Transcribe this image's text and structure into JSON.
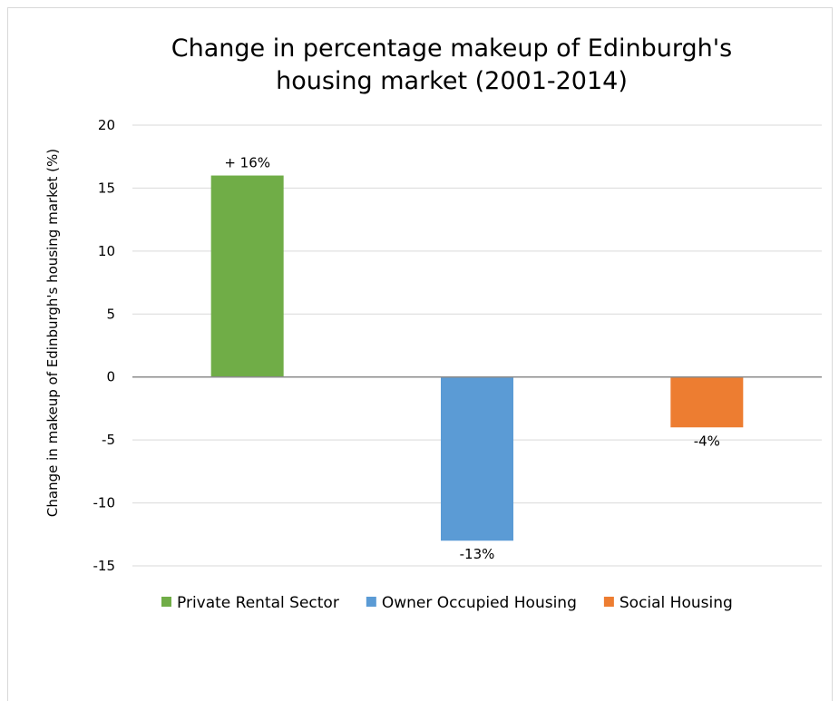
{
  "chart_data": {
    "type": "bar",
    "title": [
      "Change in percentage makeup of Edinburgh's",
      "housing market (2001-2014)"
    ],
    "ylabel": "Change in makeup of Edinburgh's housing market (%)",
    "xlabel": "",
    "ylim": [
      -15,
      20
    ],
    "yticks": [
      20,
      15,
      10,
      5,
      0,
      -5,
      -10,
      -15
    ],
    "grid": true,
    "legend": "bottom",
    "series": [
      {
        "name": "Private Rental Sector",
        "value": 16,
        "label": "+ 16%",
        "color": "#70ad47"
      },
      {
        "name": "Owner Occupied Housing",
        "value": -13,
        "label": "-13%",
        "color": "#5b9bd5"
      },
      {
        "name": "Social Housing",
        "value": -4,
        "label": "-4%",
        "color": "#ed7d31"
      }
    ]
  }
}
